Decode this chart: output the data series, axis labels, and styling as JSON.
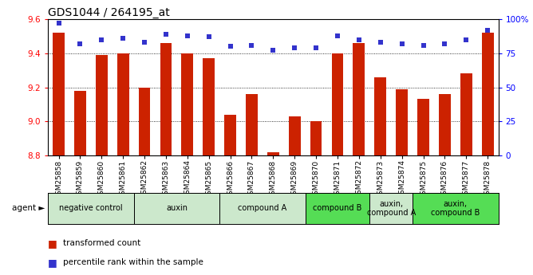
{
  "title": "GDS1044 / 264195_at",
  "samples": [
    "GSM25858",
    "GSM25859",
    "GSM25860",
    "GSM25861",
    "GSM25862",
    "GSM25863",
    "GSM25864",
    "GSM25865",
    "GSM25866",
    "GSM25867",
    "GSM25868",
    "GSM25869",
    "GSM25870",
    "GSM25871",
    "GSM25872",
    "GSM25873",
    "GSM25874",
    "GSM25875",
    "GSM25876",
    "GSM25877",
    "GSM25878"
  ],
  "bar_values": [
    9.52,
    9.18,
    9.39,
    9.4,
    9.2,
    9.46,
    9.4,
    9.37,
    9.04,
    9.16,
    8.82,
    9.03,
    9.0,
    9.4,
    9.46,
    9.26,
    9.19,
    9.13,
    9.16,
    9.28,
    9.52
  ],
  "percentile_values": [
    97,
    82,
    85,
    86,
    83,
    89,
    88,
    87,
    80,
    81,
    77,
    79,
    79,
    88,
    85,
    83,
    82,
    81,
    82,
    85,
    92
  ],
  "ylim_left": [
    8.8,
    9.6
  ],
  "ylim_right": [
    0,
    100
  ],
  "yticks_left": [
    8.8,
    9.0,
    9.2,
    9.4,
    9.6
  ],
  "yticks_right": [
    0,
    25,
    50,
    75,
    100
  ],
  "ytick_labels_right": [
    "0",
    "25",
    "50",
    "75",
    "100%"
  ],
  "bar_color": "#cc2200",
  "dot_color": "#3333cc",
  "background_color": "#ffffff",
  "agent_groups": [
    {
      "label": "negative control",
      "start": 0,
      "end": 3,
      "color": "#cce8cc"
    },
    {
      "label": "auxin",
      "start": 4,
      "end": 7,
      "color": "#cce8cc"
    },
    {
      "label": "compound A",
      "start": 8,
      "end": 11,
      "color": "#cce8cc"
    },
    {
      "label": "compound B",
      "start": 12,
      "end": 14,
      "color": "#55dd55"
    },
    {
      "label": "auxin,\ncompound A",
      "start": 15,
      "end": 16,
      "color": "#cce8cc"
    },
    {
      "label": "auxin,\ncompound B",
      "start": 17,
      "end": 20,
      "color": "#55dd55"
    }
  ],
  "legend_items": [
    {
      "label": "transformed count",
      "color": "#cc2200"
    },
    {
      "label": "percentile rank within the sample",
      "color": "#3333cc"
    }
  ],
  "title_fontsize": 10,
  "tick_fontsize": 7.5,
  "bar_width": 0.55
}
